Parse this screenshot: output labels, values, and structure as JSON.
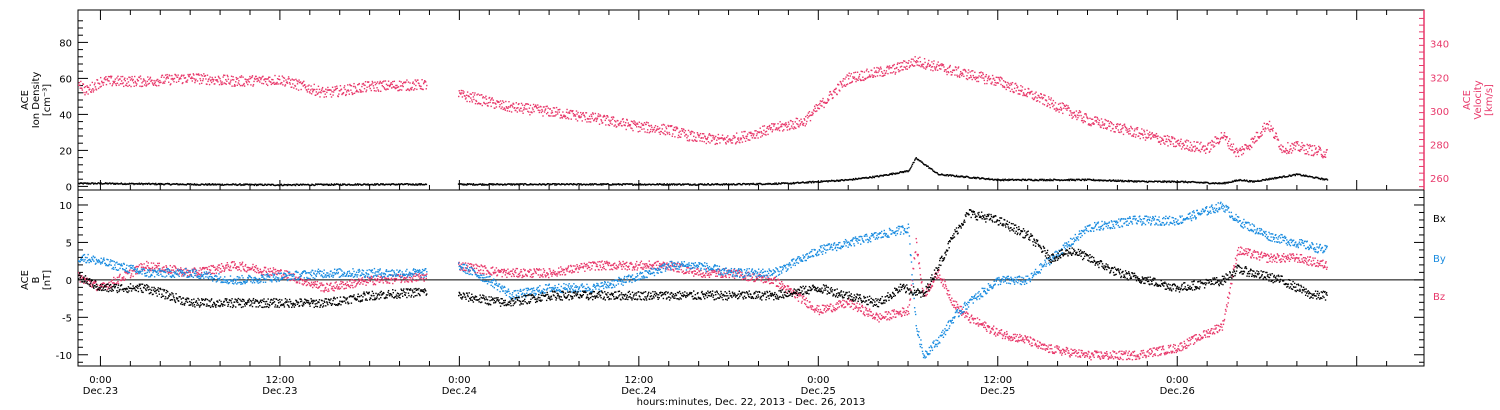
{
  "colors": {
    "black": "#000000",
    "pink": "#e8396b",
    "blue": "#1a8ce0",
    "axis": "#000000"
  },
  "x_axis": {
    "tick_labels": [
      {
        "time": "0:00",
        "date": "Dec.23"
      },
      {
        "time": "12:00",
        "date": "Dec.23"
      },
      {
        "time": "0:00",
        "date": "Dec.24"
      },
      {
        "time": "12:00",
        "date": "Dec.24"
      },
      {
        "time": "0:00",
        "date": "Dec.25"
      },
      {
        "time": "12:00",
        "date": "Dec.25"
      },
      {
        "time": "0:00",
        "date": "Dec.26"
      }
    ],
    "title": "hours:minutes, Dec. 22, 2013 - Dec. 26, 2013"
  },
  "panel_top": {
    "ylabel_left": [
      "ACE",
      "Ion Density",
      "[cm⁻³]"
    ],
    "ylabel_right": [
      "ACE",
      "Velocity",
      "[km/s]"
    ],
    "left_ticks": [
      "0",
      "20",
      "40",
      "60",
      "80"
    ],
    "right_ticks": [
      "260",
      "280",
      "300",
      "320",
      "340"
    ]
  },
  "panel_bottom": {
    "ylabel_left": [
      "ACE",
      "B",
      "[nT]"
    ],
    "left_ticks": [
      "-10",
      "-5",
      "0",
      "5",
      "10"
    ],
    "legend": [
      "Bx",
      "By",
      "Bz"
    ]
  },
  "chart_data": [
    {
      "type": "scatter",
      "panel": "ion density / velocity",
      "x_unit": "hours since 2013-12-23 00:00",
      "x_range": [
        -1.5,
        88.5
      ],
      "gap_x": [
        21.8,
        23.9
      ],
      "ylim_left": [
        -2,
        98
      ],
      "ylim_right": [
        253,
        360
      ],
      "series": [
        {
          "name": "Ion Density",
          "axis": "left",
          "x": [
            -1.5,
            0,
            6,
            12,
            18,
            21.8,
            23.9,
            30,
            36,
            42,
            46,
            50,
            52,
            54,
            54.5,
            56,
            60,
            66,
            70,
            72,
            75,
            76.2,
            77,
            80,
            82
          ],
          "y": [
            2,
            2,
            1.5,
            1.2,
            1.5,
            1.5,
            1.5,
            1.5,
            1.5,
            1.5,
            2,
            4,
            6,
            9,
            16,
            7,
            4,
            4,
            3,
            3,
            2,
            4,
            3,
            7,
            4
          ]
        },
        {
          "name": "Velocity",
          "axis": "right",
          "x": [
            -1.5,
            -1,
            0,
            3,
            6,
            9,
            12,
            15,
            18,
            21.8,
            23.9,
            25,
            27,
            30,
            33,
            36,
            38,
            40,
            42,
            45,
            47,
            50,
            53,
            54.5,
            57,
            60,
            63,
            66,
            69,
            72,
            74,
            75,
            76,
            77,
            78,
            79,
            80,
            82
          ],
          "y": [
            318,
            312,
            318,
            318,
            320,
            318,
            319,
            311,
            315,
            316,
            310,
            308,
            303,
            300,
            296,
            291,
            289,
            284,
            283,
            290,
            294,
            320,
            325,
            330,
            324,
            318,
            307,
            295,
            288,
            281,
            278,
            286,
            275,
            282,
            293,
            278,
            279,
            275
          ]
        }
      ]
    },
    {
      "type": "scatter",
      "panel": "B field",
      "x_unit": "hours since 2013-12-23 00:00",
      "x_range": [
        -1.5,
        88.5
      ],
      "gap_x": [
        21.8,
        23.9
      ],
      "ylim": [
        -11.5,
        12
      ],
      "series": [
        {
          "name": "Bx",
          "x": [
            -1.5,
            0,
            3,
            6,
            9,
            12,
            15,
            18,
            21.8,
            23.9,
            27,
            30,
            33,
            36,
            39,
            42,
            45,
            48,
            50,
            52,
            53.5,
            54.5,
            55,
            56,
            57,
            58,
            60,
            62,
            63,
            63.5,
            65,
            66,
            67,
            68,
            70,
            72,
            75,
            76,
            77,
            79,
            81,
            82
          ],
          "y": [
            0.5,
            -1,
            -1,
            -3,
            -3,
            -3,
            -3,
            -2,
            -1.5,
            -2,
            -3,
            -2,
            -2,
            -2,
            -2,
            -2,
            -2,
            -1,
            -2,
            -3,
            -1,
            -1.5,
            -2,
            2,
            6,
            9,
            8,
            6,
            4,
            3,
            4,
            3,
            2,
            1,
            0,
            -1,
            0,
            1.5,
            1,
            0,
            -2,
            -2
          ]
        },
        {
          "name": "By",
          "x": [
            -1.5,
            -1,
            0,
            3,
            6,
            9,
            12,
            15,
            18,
            21.8,
            23.9,
            26,
            27.5,
            30,
            33,
            36,
            38,
            40,
            42,
            45,
            48,
            50,
            52,
            54,
            54.5,
            55,
            56,
            57,
            58,
            60,
            62,
            63,
            66,
            69,
            72,
            75,
            76,
            78,
            80,
            82
          ],
          "y": [
            3,
            3,
            2.5,
            1,
            1,
            0,
            0.5,
            1,
            1,
            1,
            2,
            0,
            -2,
            -1,
            -1,
            0.5,
            2,
            2,
            1,
            1,
            4,
            5,
            6,
            7,
            -6,
            -10,
            -8,
            -5,
            -3,
            0,
            0,
            2,
            7,
            8,
            8,
            10,
            8,
            6,
            5,
            4
          ]
        },
        {
          "name": "Bz",
          "x": [
            -1.5,
            0,
            3,
            6,
            9,
            12,
            15,
            18,
            21.8,
            23.9,
            27,
            30,
            33,
            36,
            38,
            40,
            42,
            45,
            48,
            50,
            52,
            54,
            54.5,
            55,
            56,
            57,
            58,
            60,
            62,
            63,
            66,
            69,
            72,
            74,
            75,
            76,
            78,
            80,
            82
          ],
          "y": [
            0.5,
            -1,
            2,
            1,
            2,
            1,
            -1,
            0,
            0.5,
            2,
            1,
            1,
            2,
            2,
            2,
            1,
            1,
            0,
            -4,
            -3,
            -5,
            -4,
            5,
            -2,
            1,
            -3,
            -5,
            -7,
            -8,
            -9,
            -10,
            -10,
            -9,
            -7,
            -6,
            4,
            3,
            3,
            2
          ]
        }
      ]
    }
  ]
}
